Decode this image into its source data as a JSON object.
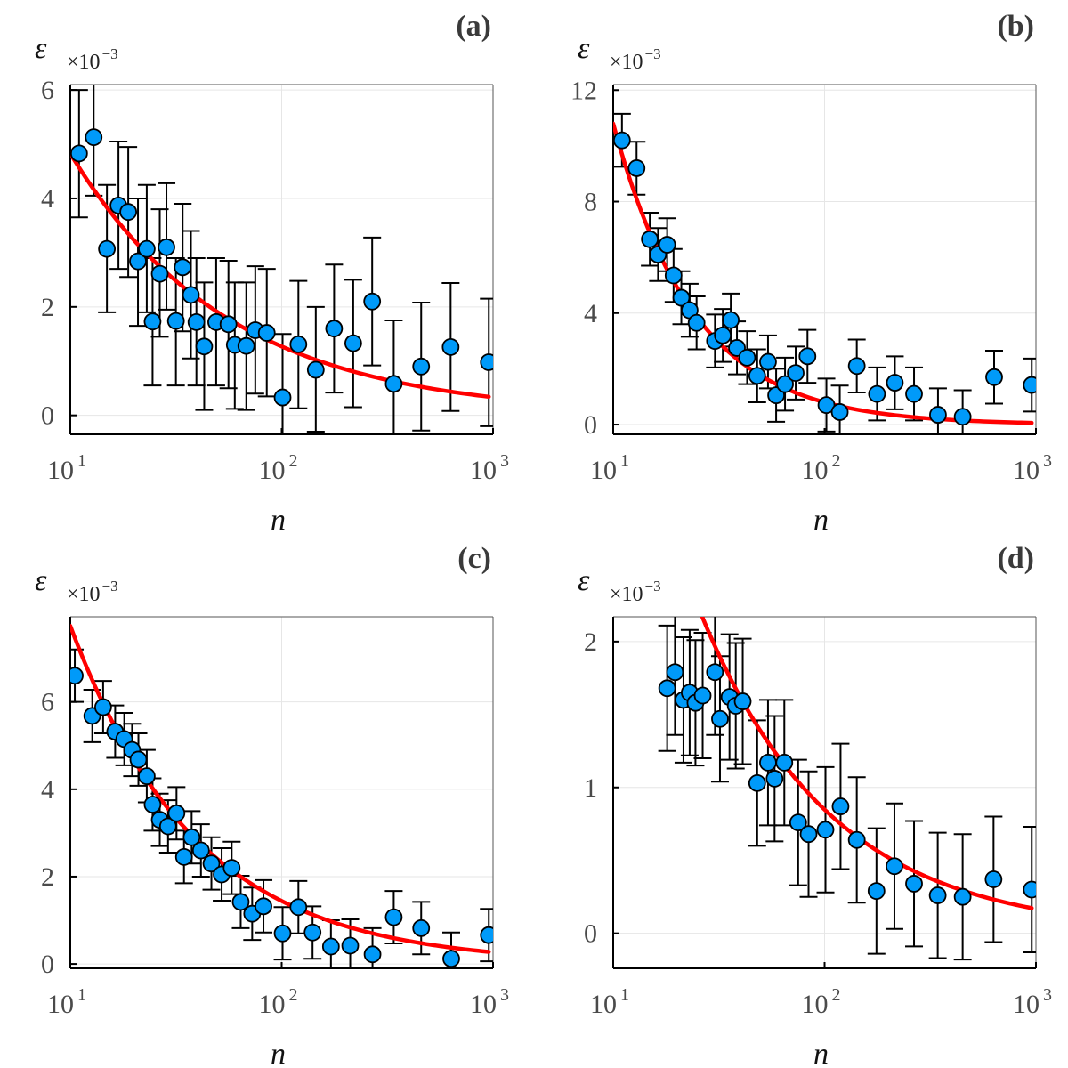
{
  "style": {
    "point_fill": "#009af9",
    "point_stroke": "#000000",
    "fit_color": "#ff0000",
    "grid_color": "#e6e6e6",
    "frame_color": "#555555",
    "axis_color": "#000000"
  },
  "chart_data": [
    {
      "type": "scatter",
      "panel_label": "(a)",
      "xlabel": "n",
      "ylabel": "ε",
      "xscale": "log",
      "xlim": [
        10,
        1000
      ],
      "ylim": [
        -0.35,
        6.1
      ],
      "scale_factor": {
        "base": "×10",
        "exponent": "−3"
      },
      "xticks": [
        {
          "base": "10",
          "exp": "1",
          "value": 10
        },
        {
          "base": "10",
          "exp": "2",
          "value": 100
        },
        {
          "base": "10",
          "exp": "3",
          "value": 1000
        }
      ],
      "yticks": [
        {
          "label": "0",
          "value": 0
        },
        {
          "label": "2",
          "value": 2
        },
        {
          "label": "4",
          "value": 4
        },
        {
          "label": "6",
          "value": 6
        }
      ],
      "points": [
        {
          "x": 11.0,
          "y": 4.83,
          "lo": 3.65,
          "hi": 6.0
        },
        {
          "x": 12.9,
          "y": 5.13,
          "lo": 4.05,
          "hi": 6.2
        },
        {
          "x": 14.9,
          "y": 3.07,
          "lo": 1.9,
          "hi": 4.25
        },
        {
          "x": 16.9,
          "y": 3.87,
          "lo": 2.7,
          "hi": 5.05
        },
        {
          "x": 18.8,
          "y": 3.75,
          "lo": 2.55,
          "hi": 4.95
        },
        {
          "x": 20.9,
          "y": 2.84,
          "lo": 1.65,
          "hi": 4.0
        },
        {
          "x": 23.0,
          "y": 3.07,
          "lo": 1.9,
          "hi": 4.25
        },
        {
          "x": 24.5,
          "y": 1.73,
          "lo": 0.55,
          "hi": 2.9
        },
        {
          "x": 26.5,
          "y": 2.61,
          "lo": 1.45,
          "hi": 3.8
        },
        {
          "x": 28.5,
          "y": 3.1,
          "lo": 1.95,
          "hi": 4.28
        },
        {
          "x": 31.6,
          "y": 1.74,
          "lo": 0.55,
          "hi": 2.9
        },
        {
          "x": 34.0,
          "y": 2.73,
          "lo": 1.55,
          "hi": 3.9
        },
        {
          "x": 37.2,
          "y": 2.22,
          "lo": 1.05,
          "hi": 3.4
        },
        {
          "x": 39.5,
          "y": 1.72,
          "lo": 0.55,
          "hi": 2.9
        },
        {
          "x": 43.0,
          "y": 1.27,
          "lo": 0.1,
          "hi": 2.45
        },
        {
          "x": 49.0,
          "y": 1.72,
          "lo": 0.55,
          "hi": 2.9
        },
        {
          "x": 56.0,
          "y": 1.68,
          "lo": 0.5,
          "hi": 2.85
        },
        {
          "x": 60.0,
          "y": 1.3,
          "lo": 0.12,
          "hi": 2.45
        },
        {
          "x": 68.0,
          "y": 1.28,
          "lo": 0.1,
          "hi": 2.45
        },
        {
          "x": 75.0,
          "y": 1.57,
          "lo": 0.4,
          "hi": 2.75
        },
        {
          "x": 85.0,
          "y": 1.52,
          "lo": 0.35,
          "hi": 2.7
        },
        {
          "x": 101.0,
          "y": 0.33,
          "lo": -0.85,
          "hi": 1.5
        },
        {
          "x": 120.0,
          "y": 1.31,
          "lo": 0.13,
          "hi": 2.48
        },
        {
          "x": 145.0,
          "y": 0.84,
          "lo": -0.3,
          "hi": 2.0
        },
        {
          "x": 177.0,
          "y": 1.6,
          "lo": 0.42,
          "hi": 2.78
        },
        {
          "x": 218.0,
          "y": 1.33,
          "lo": 0.15,
          "hi": 2.5
        },
        {
          "x": 268.0,
          "y": 2.1,
          "lo": 0.92,
          "hi": 3.28
        },
        {
          "x": 339.0,
          "y": 0.58,
          "lo": -0.6,
          "hi": 1.75
        },
        {
          "x": 457.0,
          "y": 0.9,
          "lo": -0.28,
          "hi": 2.08
        },
        {
          "x": 630.0,
          "y": 1.26,
          "lo": 0.08,
          "hi": 2.44
        },
        {
          "x": 955.0,
          "y": 0.98,
          "lo": -0.2,
          "hi": 2.15
        }
      ],
      "fit": {
        "type": "power",
        "a": 4.83,
        "b": 0.58,
        "x_start": 10,
        "x_end": 955
      }
    },
    {
      "type": "scatter",
      "panel_label": "(b)",
      "xlabel": "n",
      "ylabel": "ε",
      "xscale": "log",
      "xlim": [
        10,
        1000
      ],
      "ylim": [
        -0.35,
        12.2
      ],
      "scale_factor": {
        "base": "×10",
        "exponent": "−3"
      },
      "xticks": [
        {
          "base": "10",
          "exp": "1",
          "value": 10
        },
        {
          "base": "10",
          "exp": "2",
          "value": 100
        },
        {
          "base": "10",
          "exp": "3",
          "value": 1000
        }
      ],
      "yticks": [
        {
          "label": "0",
          "value": 0
        },
        {
          "label": "4",
          "value": 4
        },
        {
          "label": "8",
          "value": 8
        },
        {
          "label": "12",
          "value": 12
        }
      ],
      "points": [
        {
          "x": 11.0,
          "y": 10.2,
          "lo": 9.25,
          "hi": 11.15
        },
        {
          "x": 12.9,
          "y": 9.2,
          "lo": 8.25,
          "hi": 10.15
        },
        {
          "x": 14.9,
          "y": 6.65,
          "lo": 5.7,
          "hi": 7.6
        },
        {
          "x": 16.3,
          "y": 6.1,
          "lo": 5.15,
          "hi": 7.05
        },
        {
          "x": 18.0,
          "y": 6.45,
          "lo": 5.5,
          "hi": 7.4
        },
        {
          "x": 19.3,
          "y": 5.35,
          "lo": 4.4,
          "hi": 6.3
        },
        {
          "x": 21.0,
          "y": 4.55,
          "lo": 3.6,
          "hi": 5.5
        },
        {
          "x": 23.0,
          "y": 4.1,
          "lo": 3.15,
          "hi": 5.05
        },
        {
          "x": 24.8,
          "y": 3.65,
          "lo": 2.7,
          "hi": 4.6
        },
        {
          "x": 30.3,
          "y": 3.0,
          "lo": 2.05,
          "hi": 3.95
        },
        {
          "x": 33.0,
          "y": 3.2,
          "lo": 2.25,
          "hi": 4.15
        },
        {
          "x": 36.0,
          "y": 3.75,
          "lo": 2.8,
          "hi": 4.7
        },
        {
          "x": 38.5,
          "y": 2.75,
          "lo": 1.8,
          "hi": 3.7
        },
        {
          "x": 43.0,
          "y": 2.4,
          "lo": 1.45,
          "hi": 3.35
        },
        {
          "x": 48.0,
          "y": 1.75,
          "lo": 0.8,
          "hi": 2.7
        },
        {
          "x": 54.0,
          "y": 2.25,
          "lo": 1.3,
          "hi": 3.2
        },
        {
          "x": 59.0,
          "y": 1.05,
          "lo": 0.1,
          "hi": 2.0
        },
        {
          "x": 65.0,
          "y": 1.45,
          "lo": 0.5,
          "hi": 2.4
        },
        {
          "x": 73.0,
          "y": 1.85,
          "lo": 0.9,
          "hi": 2.8
        },
        {
          "x": 83.0,
          "y": 2.45,
          "lo": 1.5,
          "hi": 3.4
        },
        {
          "x": 102.0,
          "y": 0.7,
          "lo": -0.25,
          "hi": 1.65
        },
        {
          "x": 118.0,
          "y": 0.45,
          "lo": -0.5,
          "hi": 1.4
        },
        {
          "x": 142.0,
          "y": 2.1,
          "lo": 1.15,
          "hi": 3.05
        },
        {
          "x": 177.0,
          "y": 1.1,
          "lo": 0.15,
          "hi": 2.05
        },
        {
          "x": 215.0,
          "y": 1.5,
          "lo": 0.55,
          "hi": 2.45
        },
        {
          "x": 265.0,
          "y": 1.1,
          "lo": 0.15,
          "hi": 2.05
        },
        {
          "x": 344.0,
          "y": 0.35,
          "lo": -0.6,
          "hi": 1.3
        },
        {
          "x": 450.0,
          "y": 0.28,
          "lo": -0.67,
          "hi": 1.23
        },
        {
          "x": 634.0,
          "y": 1.7,
          "lo": 0.75,
          "hi": 2.65
        },
        {
          "x": 955.0,
          "y": 1.42,
          "lo": 0.47,
          "hi": 2.37
        }
      ],
      "fit": {
        "type": "power",
        "a": 10.8,
        "b": 1.13,
        "x_start": 10,
        "x_end": 955
      }
    },
    {
      "type": "scatter",
      "panel_label": "(c)",
      "xlabel": "n",
      "ylabel": "ε",
      "xscale": "log",
      "xlim": [
        10,
        1000
      ],
      "ylim": [
        -0.1,
        7.95
      ],
      "scale_factor": {
        "base": "×10",
        "exponent": "−3"
      },
      "xticks": [
        {
          "base": "10",
          "exp": "1",
          "value": 10
        },
        {
          "base": "10",
          "exp": "2",
          "value": 100
        },
        {
          "base": "10",
          "exp": "3",
          "value": 1000
        }
      ],
      "yticks": [
        {
          "label": "0",
          "value": 0
        },
        {
          "label": "2",
          "value": 2
        },
        {
          "label": "4",
          "value": 4
        },
        {
          "label": "6",
          "value": 6
        }
      ],
      "points": [
        {
          "x": 10.5,
          "y": 6.6,
          "lo": 6.0,
          "hi": 7.2
        },
        {
          "x": 12.7,
          "y": 5.68,
          "lo": 5.08,
          "hi": 6.28
        },
        {
          "x": 14.3,
          "y": 5.88,
          "lo": 5.28,
          "hi": 6.48
        },
        {
          "x": 16.3,
          "y": 5.32,
          "lo": 4.72,
          "hi": 5.92
        },
        {
          "x": 18.0,
          "y": 5.15,
          "lo": 4.55,
          "hi": 5.75
        },
        {
          "x": 19.6,
          "y": 4.9,
          "lo": 4.3,
          "hi": 5.5
        },
        {
          "x": 21.0,
          "y": 4.68,
          "lo": 4.08,
          "hi": 5.28
        },
        {
          "x": 23.0,
          "y": 4.3,
          "lo": 3.7,
          "hi": 4.9
        },
        {
          "x": 24.5,
          "y": 3.65,
          "lo": 3.05,
          "hi": 4.25
        },
        {
          "x": 26.5,
          "y": 3.3,
          "lo": 2.7,
          "hi": 3.9
        },
        {
          "x": 29.0,
          "y": 3.15,
          "lo": 2.55,
          "hi": 3.75
        },
        {
          "x": 31.8,
          "y": 3.45,
          "lo": 2.85,
          "hi": 4.05
        },
        {
          "x": 34.5,
          "y": 2.45,
          "lo": 1.85,
          "hi": 3.05
        },
        {
          "x": 37.5,
          "y": 2.9,
          "lo": 2.3,
          "hi": 3.5
        },
        {
          "x": 41.5,
          "y": 2.6,
          "lo": 2.0,
          "hi": 3.2
        },
        {
          "x": 46.5,
          "y": 2.3,
          "lo": 1.7,
          "hi": 2.9
        },
        {
          "x": 52.0,
          "y": 2.05,
          "lo": 1.45,
          "hi": 2.65
        },
        {
          "x": 58.0,
          "y": 2.2,
          "lo": 1.6,
          "hi": 2.8
        },
        {
          "x": 64.0,
          "y": 1.42,
          "lo": 0.82,
          "hi": 2.02
        },
        {
          "x": 72.5,
          "y": 1.15,
          "lo": 0.55,
          "hi": 1.75
        },
        {
          "x": 82.0,
          "y": 1.32,
          "lo": 0.72,
          "hi": 1.92
        },
        {
          "x": 101.0,
          "y": 0.7,
          "lo": 0.1,
          "hi": 1.3
        },
        {
          "x": 120.0,
          "y": 1.3,
          "lo": 0.7,
          "hi": 1.9
        },
        {
          "x": 140.0,
          "y": 0.72,
          "lo": 0.12,
          "hi": 1.32
        },
        {
          "x": 171.0,
          "y": 0.4,
          "lo": -0.2,
          "hi": 1.0
        },
        {
          "x": 211.0,
          "y": 0.42,
          "lo": -0.18,
          "hi": 1.02
        },
        {
          "x": 269.0,
          "y": 0.22,
          "lo": -0.38,
          "hi": 0.82
        },
        {
          "x": 339.0,
          "y": 1.07,
          "lo": 0.47,
          "hi": 1.67
        },
        {
          "x": 457.0,
          "y": 0.82,
          "lo": 0.22,
          "hi": 1.42
        },
        {
          "x": 634.0,
          "y": 0.12,
          "lo": -0.48,
          "hi": 0.72
        },
        {
          "x": 955.0,
          "y": 0.66,
          "lo": 0.06,
          "hi": 1.26
        }
      ],
      "fit": {
        "type": "power",
        "a": 7.74,
        "b": 0.73,
        "x_start": 10,
        "x_end": 955
      }
    },
    {
      "type": "scatter",
      "panel_label": "(d)",
      "xlabel": "n",
      "ylabel": "ε",
      "xscale": "log",
      "xlim": [
        10,
        1000
      ],
      "ylim": [
        -0.24,
        2.17
      ],
      "scale_factor": {
        "base": "×10",
        "exponent": "−3"
      },
      "xticks": [
        {
          "base": "10",
          "exp": "1",
          "value": 10
        },
        {
          "base": "10",
          "exp": "2",
          "value": 100
        },
        {
          "base": "10",
          "exp": "3",
          "value": 1000
        }
      ],
      "yticks": [
        {
          "label": "0",
          "value": 0
        },
        {
          "label": "1",
          "value": 1
        },
        {
          "label": "2",
          "value": 2
        }
      ],
      "points": [
        {
          "x": 18.0,
          "y": 1.68,
          "lo": 1.25,
          "hi": 2.11
        },
        {
          "x": 19.6,
          "y": 1.79,
          "lo": 1.36,
          "hi": 2.22
        },
        {
          "x": 21.5,
          "y": 1.6,
          "lo": 1.17,
          "hi": 2.03
        },
        {
          "x": 23.0,
          "y": 1.65,
          "lo": 1.22,
          "hi": 2.08
        },
        {
          "x": 24.5,
          "y": 1.58,
          "lo": 1.15,
          "hi": 2.01
        },
        {
          "x": 26.5,
          "y": 1.63,
          "lo": 1.2,
          "hi": 2.06
        },
        {
          "x": 30.3,
          "y": 1.79,
          "lo": 1.36,
          "hi": 2.22
        },
        {
          "x": 32.0,
          "y": 1.47,
          "lo": 1.04,
          "hi": 1.9
        },
        {
          "x": 35.5,
          "y": 1.62,
          "lo": 1.19,
          "hi": 2.05
        },
        {
          "x": 38.0,
          "y": 1.56,
          "lo": 1.13,
          "hi": 1.99
        },
        {
          "x": 41.0,
          "y": 1.59,
          "lo": 1.16,
          "hi": 2.02
        },
        {
          "x": 48.0,
          "y": 1.03,
          "lo": 0.6,
          "hi": 1.46
        },
        {
          "x": 54.0,
          "y": 1.17,
          "lo": 0.74,
          "hi": 1.6
        },
        {
          "x": 58.0,
          "y": 1.06,
          "lo": 0.63,
          "hi": 1.49
        },
        {
          "x": 64.5,
          "y": 1.17,
          "lo": 0.74,
          "hi": 1.6
        },
        {
          "x": 75.0,
          "y": 0.76,
          "lo": 0.33,
          "hi": 1.19
        },
        {
          "x": 84.0,
          "y": 0.68,
          "lo": 0.25,
          "hi": 1.11
        },
        {
          "x": 101.0,
          "y": 0.71,
          "lo": 0.28,
          "hi": 1.14
        },
        {
          "x": 119.0,
          "y": 0.87,
          "lo": 0.44,
          "hi": 1.3
        },
        {
          "x": 142.0,
          "y": 0.64,
          "lo": 0.21,
          "hi": 1.07
        },
        {
          "x": 176.0,
          "y": 0.29,
          "lo": -0.14,
          "hi": 0.72
        },
        {
          "x": 214.0,
          "y": 0.46,
          "lo": 0.03,
          "hi": 0.89
        },
        {
          "x": 265.0,
          "y": 0.34,
          "lo": -0.09,
          "hi": 0.77
        },
        {
          "x": 343.0,
          "y": 0.26,
          "lo": -0.17,
          "hi": 0.69
        },
        {
          "x": 450.0,
          "y": 0.25,
          "lo": -0.18,
          "hi": 0.68
        },
        {
          "x": 630.0,
          "y": 0.37,
          "lo": -0.06,
          "hi": 0.8
        },
        {
          "x": 955.0,
          "y": 0.3,
          "lo": -0.13,
          "hi": 0.73
        }
      ],
      "fit": {
        "type": "power",
        "a": 4.3,
        "b": 0.705,
        "x_start": 14.5,
        "x_end": 955
      }
    }
  ]
}
